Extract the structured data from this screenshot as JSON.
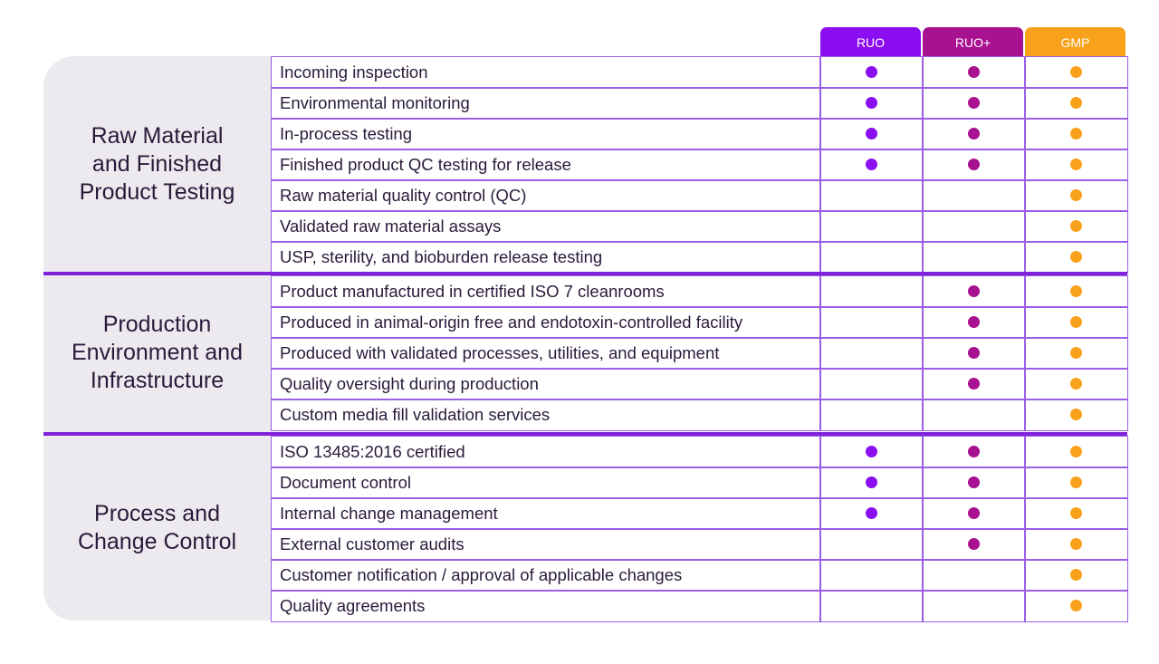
{
  "header": {
    "tiers": [
      "RUO",
      "RUO+",
      "GMP"
    ],
    "colors": [
      "#8a0ef0",
      "#a8118f",
      "#f8a21c"
    ]
  },
  "sections": [
    {
      "lines": [
        "Raw Material",
        "and Finished",
        "Product Testing"
      ],
      "rows": [
        {
          "feature": "Incoming inspection",
          "tiers": [
            true,
            true,
            true
          ]
        },
        {
          "feature": "Environmental monitoring",
          "tiers": [
            true,
            true,
            true
          ]
        },
        {
          "feature": "In-process testing",
          "tiers": [
            true,
            true,
            true
          ]
        },
        {
          "feature": "Finished product QC testing for release",
          "tiers": [
            true,
            true,
            true
          ]
        },
        {
          "feature": "Raw material quality control (QC)",
          "tiers": [
            false,
            false,
            true
          ]
        },
        {
          "feature": "Validated raw material assays",
          "tiers": [
            false,
            false,
            true
          ]
        },
        {
          "feature": "USP, sterility, and bioburden release testing",
          "tiers": [
            false,
            false,
            true
          ]
        }
      ]
    },
    {
      "lines": [
        "Production",
        "Environment and",
        "Infrastructure"
      ],
      "rows": [
        {
          "feature": "Product manufactured in certified ISO 7 cleanrooms",
          "tiers": [
            false,
            true,
            true
          ]
        },
        {
          "feature": "Produced in animal-origin free and endotoxin-controlled facility",
          "tiers": [
            false,
            true,
            true
          ]
        },
        {
          "feature": "Produced with validated processes, utilities, and equipment",
          "tiers": [
            false,
            true,
            true
          ]
        },
        {
          "feature": "Quality oversight during production",
          "tiers": [
            false,
            true,
            true
          ]
        },
        {
          "feature": "Custom media fill validation services",
          "tiers": [
            false,
            false,
            true
          ]
        }
      ]
    },
    {
      "lines": [
        "Process and",
        "Change Control"
      ],
      "rows": [
        {
          "feature": "ISO 13485:2016 certified",
          "tiers": [
            true,
            true,
            true
          ]
        },
        {
          "feature": "Document control",
          "tiers": [
            true,
            true,
            true
          ]
        },
        {
          "feature": "Internal change management",
          "tiers": [
            true,
            true,
            true
          ]
        },
        {
          "feature": "External customer audits",
          "tiers": [
            false,
            true,
            true
          ]
        },
        {
          "feature": "Customer notification / approval of applicable changes",
          "tiers": [
            false,
            false,
            true
          ]
        },
        {
          "feature": "Quality agreements",
          "tiers": [
            false,
            false,
            true
          ]
        }
      ]
    }
  ]
}
